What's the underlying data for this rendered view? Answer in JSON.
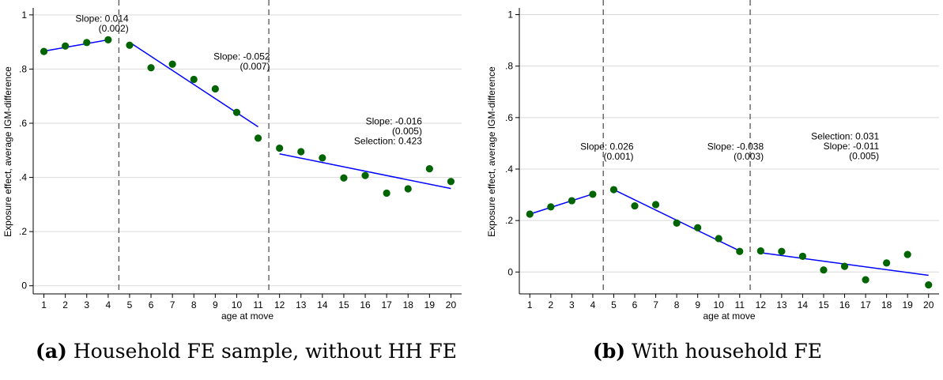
{
  "chart_data": [
    {
      "type": "scatter",
      "panel_label": "(a)",
      "caption": "Household FE sample, without HH FE",
      "xlabel": "age at move",
      "ylabel": "Exposure effect, average IGM-difference",
      "xlim": [
        0.5,
        20.5
      ],
      "ylim": [
        -0.03,
        1.02
      ],
      "yticks": [
        0,
        0.2,
        0.4,
        0.6,
        0.8,
        1
      ],
      "ytick_labels": [
        "0",
        ".2",
        ".4",
        ".6",
        ".8",
        "1"
      ],
      "xticks": [
        1,
        2,
        3,
        4,
        5,
        6,
        7,
        8,
        9,
        10,
        11,
        12,
        13,
        14,
        15,
        16,
        17,
        18,
        19,
        20
      ],
      "grid": true,
      "colors": {
        "points": "#006400",
        "fit": "#0000ff",
        "grid": "#d9d9d9",
        "divider": "#555555"
      },
      "dividers": [
        4.5,
        11.5
      ],
      "points": {
        "x": [
          1,
          2,
          3,
          4,
          5,
          6,
          7,
          8,
          9,
          10,
          11,
          12,
          13,
          14,
          15,
          16,
          17,
          18,
          19,
          20
        ],
        "y": [
          0.865,
          0.885,
          0.898,
          0.908,
          0.888,
          0.805,
          0.818,
          0.762,
          0.727,
          0.64,
          0.545,
          0.508,
          0.495,
          0.472,
          0.398,
          0.407,
          0.342,
          0.358,
          0.432,
          0.385
        ]
      },
      "fits": [
        {
          "x": [
            1,
            4
          ],
          "y": [
            0.866,
            0.908
          ]
        },
        {
          "x": [
            5,
            11
          ],
          "y": [
            0.899,
            0.587
          ]
        },
        {
          "x": [
            12,
            20
          ],
          "y": [
            0.487,
            0.359
          ]
        }
      ],
      "annotations": [
        {
          "lines": [
            "Slope: 0.014",
            "(0.002)"
          ],
          "x": 0.6,
          "y": 0.975
        },
        {
          "lines": [
            "Slope: -0.052",
            "(0.007)"
          ],
          "x": 7.2,
          "y": 0.835
        },
        {
          "lines": [
            "Slope: -0.016",
            "(0.005)",
            "Selection: 0.423"
          ],
          "x": 14.3,
          "y": 0.595
        }
      ]
    },
    {
      "type": "scatter",
      "panel_label": "(b)",
      "caption": "With household FE",
      "xlabel": "age at move",
      "ylabel": "Exposure effect, average IGM-difference",
      "xlim": [
        0.5,
        20.5
      ],
      "ylim": [
        -0.085,
        1.02
      ],
      "yticks": [
        0,
        0.2,
        0.4,
        0.6,
        0.8,
        1
      ],
      "ytick_labels": [
        "0",
        ".2",
        ".4",
        ".6",
        ".8",
        "1"
      ],
      "xticks": [
        1,
        2,
        3,
        4,
        5,
        6,
        7,
        8,
        9,
        10,
        11,
        12,
        13,
        14,
        15,
        16,
        17,
        18,
        19,
        20
      ],
      "grid": true,
      "colors": {
        "points": "#006400",
        "fit": "#0000ff",
        "grid": "#d9d9d9",
        "divider": "#555555"
      },
      "dividers": [
        4.5,
        11.5
      ],
      "points": {
        "x": [
          1,
          2,
          3,
          4,
          5,
          6,
          7,
          8,
          9,
          10,
          11,
          12,
          13,
          14,
          15,
          16,
          17,
          18,
          19,
          20
        ],
        "y": [
          0.225,
          0.253,
          0.277,
          0.302,
          0.32,
          0.257,
          0.262,
          0.19,
          0.172,
          0.13,
          0.08,
          0.082,
          0.08,
          0.061,
          0.008,
          0.022,
          -0.03,
          0.035,
          0.068,
          -0.05
        ]
      },
      "fits": [
        {
          "x": [
            1,
            4
          ],
          "y": [
            0.225,
            0.303
          ]
        },
        {
          "x": [
            5,
            11
          ],
          "y": [
            0.32,
            0.082
          ]
        },
        {
          "x": [
            12,
            20
          ],
          "y": [
            0.075,
            -0.013
          ]
        }
      ],
      "annotations": [
        {
          "lines": [
            "Slope: 0.026",
            "(0.001)"
          ],
          "x": 1.5,
          "y": 0.475
        },
        {
          "lines": [
            "Slope: -0.038",
            "(0.003)"
          ],
          "x": 7.7,
          "y": 0.475
        },
        {
          "lines": [
            "Selection: 0.031",
            "Slope: -0.011",
            "(0.005)"
          ],
          "x": 13.2,
          "y": 0.515
        }
      ]
    }
  ]
}
